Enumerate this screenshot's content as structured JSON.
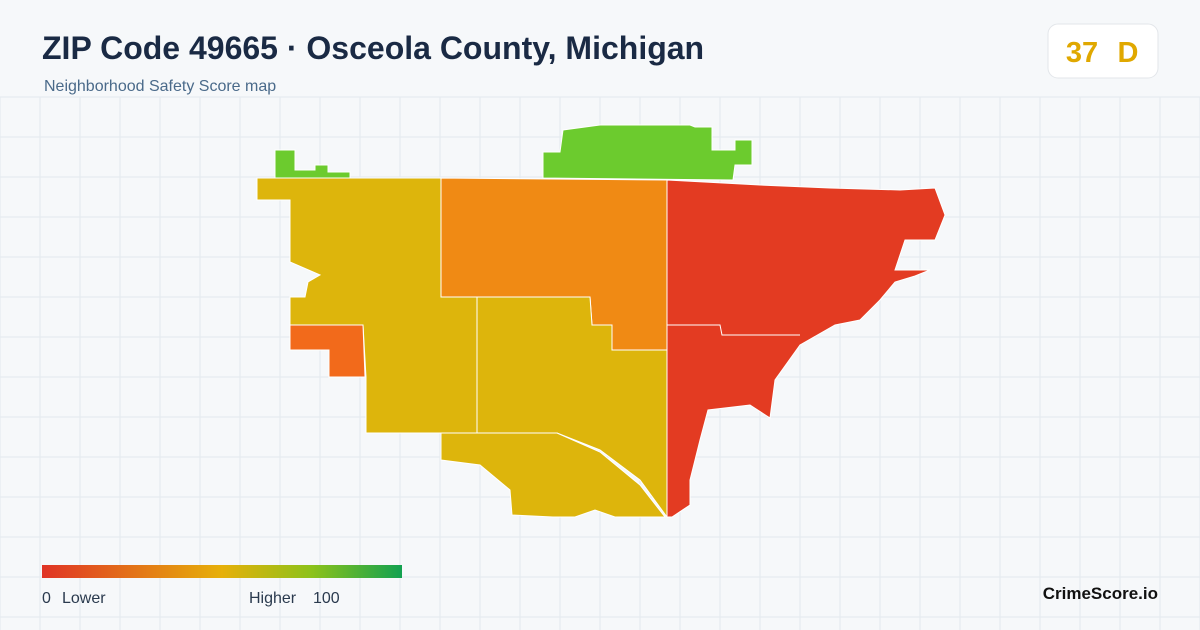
{
  "header": {
    "title": "ZIP Code 49665 · Osceola County, Michigan",
    "subtitle": "Neighborhood Safety Score map"
  },
  "badge": {
    "score": "37",
    "grade": "D"
  },
  "legend": {
    "min": "0",
    "min_label": "Lower",
    "max_label": "Higher",
    "max": "100"
  },
  "brand": "CrimeScore.io"
}
